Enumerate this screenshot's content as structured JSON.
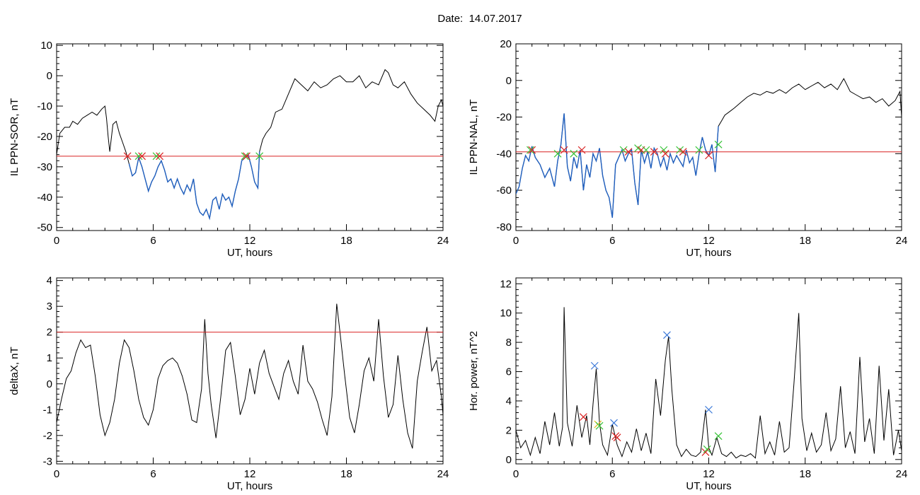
{
  "header": {
    "date_label": "Date:",
    "date_value": "14.07.2017"
  },
  "colors": {
    "trace": "#000000",
    "segment": "#1f5fbf",
    "threshold": "#d92020",
    "marker_red": "#d92020",
    "marker_green": "#35c335",
    "marker_blue": "#3b78d8",
    "marker_yellow": "#e0c020"
  },
  "chart_data": [
    {
      "id": "sor",
      "type": "line",
      "xlabel": "UT, hours",
      "ylabel": "IL PPN-SOR, nT",
      "xlim": [
        0,
        24
      ],
      "ylim": [
        -51,
        10.5
      ],
      "xticks": [
        0,
        6,
        12,
        18,
        24
      ],
      "yticks": [
        10,
        0,
        -10,
        -20,
        -30,
        -40,
        -50
      ],
      "threshold": -26.5,
      "x": [
        0,
        0.2,
        0.5,
        0.8,
        1.0,
        1.3,
        1.6,
        1.9,
        2.2,
        2.5,
        2.8,
        3.0,
        3.1,
        3.2,
        3.3,
        3.5,
        3.7,
        3.9,
        4.1,
        4.3,
        4.5,
        4.7,
        4.9,
        5.1,
        5.3,
        5.5,
        5.7,
        5.9,
        6.1,
        6.3,
        6.5,
        6.7,
        6.9,
        7.1,
        7.3,
        7.5,
        7.7,
        7.9,
        8.1,
        8.3,
        8.5,
        8.7,
        8.9,
        9.1,
        9.3,
        9.5,
        9.7,
        9.9,
        10.1,
        10.3,
        10.5,
        10.7,
        10.9,
        11.1,
        11.3,
        11.5,
        11.7,
        11.9,
        12.1,
        12.3,
        12.5,
        12.6,
        12.8,
        13.0,
        13.3,
        13.6,
        14.0,
        14.4,
        14.8,
        15.2,
        15.6,
        16.0,
        16.4,
        16.8,
        17.2,
        17.6,
        18.0,
        18.4,
        18.8,
        19.2,
        19.6,
        20.0,
        20.4,
        20.6,
        20.9,
        21.2,
        21.6,
        22.0,
        22.4,
        22.8,
        23.2,
        23.5,
        23.7,
        23.9,
        24.0
      ],
      "y": [
        -26,
        -19,
        -17,
        -17,
        -15,
        -16,
        -14,
        -13,
        -12,
        -13,
        -11,
        -10,
        -14,
        -20,
        -25,
        -16,
        -15,
        -19,
        -22,
        -25,
        -29,
        -33,
        -32,
        -27,
        -30,
        -34,
        -38,
        -35,
        -33,
        -30,
        -28,
        -31,
        -35,
        -34,
        -37,
        -34,
        -37,
        -39,
        -36,
        -38,
        -34,
        -42,
        -45,
        -46,
        -44,
        -47,
        -41,
        -40,
        -44,
        -39,
        -41,
        -40,
        -43,
        -38,
        -34,
        -28,
        -27,
        -26,
        -30,
        -35,
        -37,
        -25,
        -21,
        -19,
        -17,
        -12,
        -11,
        -6,
        -1,
        -3,
        -5,
        -2,
        -4,
        -3,
        -1,
        0,
        -2,
        -2,
        0,
        -4,
        -2,
        -3,
        2,
        1,
        -3,
        -4,
        -2,
        -6,
        -9,
        -11,
        -13,
        -15,
        -10,
        -8,
        -10
      ],
      "segments": [
        [
          4.4,
          12.6
        ]
      ],
      "markers": [
        {
          "x": 4.4,
          "y": -26.5,
          "color": "red"
        },
        {
          "x": 5.1,
          "y": -26.5,
          "color": "green"
        },
        {
          "x": 5.3,
          "y": -26.5,
          "color": "red"
        },
        {
          "x": 6.2,
          "y": -26.5,
          "color": "green"
        },
        {
          "x": 6.4,
          "y": -26.5,
          "color": "red"
        },
        {
          "x": 11.7,
          "y": -26.5,
          "color": "green"
        },
        {
          "x": 11.8,
          "y": -26.5,
          "color": "red"
        },
        {
          "x": 12.6,
          "y": -26.5,
          "color": "green"
        }
      ]
    },
    {
      "id": "nal",
      "type": "line",
      "xlabel": "UT, hours",
      "ylabel": "IL PPN-NAL, nT",
      "xlim": [
        0,
        24
      ],
      "ylim": [
        -82,
        20
      ],
      "xticks": [
        0,
        6,
        12,
        18,
        24
      ],
      "yticks": [
        20,
        0,
        -20,
        -40,
        -60,
        -80
      ],
      "threshold": -39,
      "x": [
        0,
        0.2,
        0.4,
        0.6,
        0.8,
        1.0,
        1.2,
        1.5,
        1.8,
        2.1,
        2.4,
        2.6,
        2.8,
        3.0,
        3.2,
        3.4,
        3.6,
        3.8,
        4.0,
        4.2,
        4.4,
        4.6,
        4.8,
        5.0,
        5.2,
        5.4,
        5.6,
        5.8,
        6.0,
        6.2,
        6.4,
        6.6,
        6.8,
        7.0,
        7.2,
        7.4,
        7.6,
        7.8,
        8.0,
        8.2,
        8.4,
        8.6,
        8.8,
        9.0,
        9.2,
        9.4,
        9.6,
        9.8,
        10.0,
        10.2,
        10.4,
        10.6,
        10.8,
        11.0,
        11.2,
        11.4,
        11.6,
        11.8,
        12.0,
        12.2,
        12.4,
        12.6,
        12.8,
        13.0,
        13.3,
        13.6,
        14.0,
        14.4,
        14.8,
        15.2,
        15.6,
        16.0,
        16.4,
        16.8,
        17.2,
        17.6,
        18.0,
        18.4,
        18.8,
        19.2,
        19.6,
        20.0,
        20.4,
        20.8,
        21.2,
        21.6,
        22.0,
        22.4,
        22.8,
        23.2,
        23.6,
        23.9,
        24.0
      ],
      "y": [
        -62,
        -58,
        -48,
        -41,
        -44,
        -36,
        -42,
        -46,
        -53,
        -48,
        -58,
        -44,
        -35,
        -18,
        -47,
        -55,
        -42,
        -48,
        -38,
        -60,
        -46,
        -53,
        -40,
        -44,
        -37,
        -52,
        -60,
        -64,
        -75,
        -46,
        -42,
        -38,
        -44,
        -40,
        -38,
        -56,
        -68,
        -38,
        -45,
        -39,
        -48,
        -37,
        -40,
        -47,
        -42,
        -49,
        -40,
        -45,
        -41,
        -44,
        -47,
        -38,
        -45,
        -42,
        -52,
        -40,
        -31,
        -38,
        -41,
        -35,
        -50,
        -25,
        -22,
        -19,
        -17,
        -15,
        -12,
        -9,
        -7,
        -8,
        -6,
        -7,
        -5,
        -7,
        -4,
        -2,
        -5,
        -3,
        -1,
        -4,
        -2,
        -5,
        1,
        -6,
        -8,
        -10,
        -9,
        -12,
        -10,
        -14,
        -11,
        -6,
        -20
      ],
      "segments": [
        [
          0,
          12.6
        ]
      ],
      "markers": [
        {
          "x": 0.9,
          "y": -38,
          "color": "green"
        },
        {
          "x": 1.0,
          "y": -38,
          "color": "red"
        },
        {
          "x": 2.6,
          "y": -40,
          "color": "green"
        },
        {
          "x": 3.0,
          "y": -38,
          "color": "red"
        },
        {
          "x": 3.6,
          "y": -40,
          "color": "green"
        },
        {
          "x": 4.1,
          "y": -38,
          "color": "red"
        },
        {
          "x": 6.7,
          "y": -38,
          "color": "green"
        },
        {
          "x": 7.0,
          "y": -39,
          "color": "red"
        },
        {
          "x": 7.6,
          "y": -37,
          "color": "green"
        },
        {
          "x": 7.8,
          "y": -38,
          "color": "red"
        },
        {
          "x": 8.1,
          "y": -38,
          "color": "green"
        },
        {
          "x": 8.6,
          "y": -39,
          "color": "red"
        },
        {
          "x": 9.2,
          "y": -38,
          "color": "green"
        },
        {
          "x": 9.3,
          "y": -40,
          "color": "red"
        },
        {
          "x": 10.2,
          "y": -38,
          "color": "green"
        },
        {
          "x": 10.4,
          "y": -39,
          "color": "red"
        },
        {
          "x": 11.4,
          "y": -38,
          "color": "green"
        },
        {
          "x": 12.0,
          "y": -41,
          "color": "red"
        },
        {
          "x": 12.6,
          "y": -35,
          "color": "green"
        }
      ]
    },
    {
      "id": "deltax",
      "type": "line",
      "xlabel": "UT, hours",
      "ylabel": "deltaX, nT",
      "xlim": [
        0,
        24
      ],
      "ylim": [
        -3.1,
        4.1
      ],
      "xticks": [
        0,
        6,
        12,
        18,
        24
      ],
      "yticks": [
        4,
        3,
        2,
        1,
        0,
        -1,
        -2,
        -3
      ],
      "threshold": 2,
      "x": [
        0,
        0.3,
        0.6,
        0.9,
        1.2,
        1.5,
        1.8,
        2.1,
        2.4,
        2.7,
        3.0,
        3.3,
        3.6,
        3.9,
        4.2,
        4.5,
        4.8,
        5.1,
        5.4,
        5.7,
        6.0,
        6.3,
        6.6,
        6.9,
        7.2,
        7.5,
        7.8,
        8.1,
        8.4,
        8.7,
        9.0,
        9.2,
        9.4,
        9.6,
        9.9,
        10.2,
        10.5,
        10.8,
        11.1,
        11.4,
        11.7,
        12.0,
        12.3,
        12.6,
        12.9,
        13.2,
        13.5,
        13.8,
        14.1,
        14.4,
        14.7,
        15.0,
        15.3,
        15.6,
        15.9,
        16.2,
        16.5,
        16.8,
        17.1,
        17.4,
        17.6,
        17.9,
        18.2,
        18.5,
        18.8,
        19.1,
        19.4,
        19.7,
        20.0,
        20.3,
        20.6,
        20.9,
        21.2,
        21.5,
        21.8,
        22.1,
        22.4,
        22.7,
        23.0,
        23.3,
        23.6,
        23.9,
        24.0
      ],
      "y": [
        -1.5,
        -0.6,
        0.2,
        0.5,
        1.2,
        1.7,
        1.4,
        1.5,
        0.3,
        -1.2,
        -2.0,
        -1.5,
        -0.6,
        0.8,
        1.7,
        1.4,
        0.5,
        -0.6,
        -1.3,
        -1.6,
        -1.0,
        0.2,
        0.7,
        0.9,
        1.0,
        0.8,
        0.3,
        -0.4,
        -1.4,
        -1.5,
        -0.2,
        2.5,
        0.4,
        -0.8,
        -2.1,
        -0.5,
        1.3,
        1.6,
        0.3,
        -1.2,
        -0.6,
        0.6,
        -0.4,
        0.8,
        1.3,
        0.4,
        -0.1,
        -0.6,
        0.4,
        0.9,
        0.1,
        -0.4,
        1.5,
        0.1,
        -0.2,
        -0.7,
        -1.4,
        -2.0,
        -0.5,
        3.1,
        2.0,
        0.3,
        -1.3,
        -1.9,
        -0.8,
        0.5,
        1.0,
        0.1,
        2.5,
        0.3,
        -1.3,
        -0.8,
        1.1,
        -0.6,
        -1.9,
        -2.5,
        0.1,
        1.2,
        2.2,
        0.5,
        0.9,
        -0.5,
        -1.2
      ]
    },
    {
      "id": "power",
      "type": "line",
      "xlabel": "UT, hours",
      "ylabel": "Hor. power, nT^2",
      "xlim": [
        0,
        24
      ],
      "ylim": [
        -0.3,
        12.4
      ],
      "xticks": [
        0,
        6,
        12,
        18,
        24
      ],
      "yticks": [
        0,
        2,
        4,
        6,
        8,
        10,
        12
      ],
      "x": [
        0,
        0.3,
        0.6,
        0.9,
        1.2,
        1.5,
        1.8,
        2.1,
        2.4,
        2.7,
        2.9,
        3.0,
        3.2,
        3.5,
        3.8,
        4.1,
        4.4,
        4.6,
        4.8,
        5.0,
        5.2,
        5.4,
        5.7,
        6.0,
        6.3,
        6.6,
        6.9,
        7.2,
        7.5,
        7.8,
        8.1,
        8.4,
        8.7,
        9.0,
        9.3,
        9.5,
        9.7,
        10.0,
        10.3,
        10.6,
        10.9,
        11.2,
        11.5,
        11.8,
        12.0,
        12.2,
        12.5,
        12.8,
        13.1,
        13.4,
        13.7,
        14.0,
        14.3,
        14.6,
        14.9,
        15.2,
        15.5,
        15.8,
        16.1,
        16.4,
        16.7,
        17.0,
        17.3,
        17.6,
        17.8,
        18.1,
        18.4,
        18.7,
        19.0,
        19.3,
        19.6,
        19.9,
        20.2,
        20.5,
        20.8,
        21.1,
        21.4,
        21.7,
        22.0,
        22.3,
        22.6,
        22.9,
        23.2,
        23.5,
        23.8,
        24.0
      ],
      "y": [
        2.0,
        0.8,
        1.3,
        0.3,
        1.5,
        0.4,
        2.6,
        1.0,
        3.2,
        0.9,
        2.2,
        10.4,
        2.5,
        0.9,
        3.7,
        1.5,
        3.0,
        1.0,
        3.8,
        6.2,
        2.5,
        1.0,
        0.3,
        2.4,
        1.0,
        0.2,
        1.2,
        0.5,
        2.1,
        0.6,
        1.8,
        0.4,
        5.5,
        3.0,
        6.8,
        8.4,
        4.8,
        1.0,
        0.2,
        0.7,
        0.3,
        0.2,
        0.5,
        3.4,
        0.8,
        0.3,
        1.5,
        0.4,
        0.2,
        0.5,
        0.1,
        0.3,
        0.2,
        0.4,
        0.1,
        3.0,
        0.4,
        1.2,
        0.3,
        2.6,
        0.5,
        0.8,
        5.2,
        10.0,
        2.8,
        0.6,
        1.8,
        0.5,
        1.0,
        3.2,
        0.6,
        1.4,
        5.0,
        0.8,
        1.9,
        0.4,
        7.0,
        1.2,
        2.8,
        0.4,
        6.4,
        1.3,
        4.8,
        0.3,
        2.0,
        0.6
      ],
      "markers": [
        {
          "x": 4.2,
          "y": 2.9,
          "color": "red"
        },
        {
          "x": 4.9,
          "y": 6.4,
          "color": "blue"
        },
        {
          "x": 5.1,
          "y": 2.4,
          "color": "yellow"
        },
        {
          "x": 5.2,
          "y": 2.3,
          "color": "green"
        },
        {
          "x": 6.1,
          "y": 2.5,
          "color": "blue"
        },
        {
          "x": 6.2,
          "y": 1.6,
          "color": "red"
        },
        {
          "x": 6.3,
          "y": 1.5,
          "color": "red"
        },
        {
          "x": 9.4,
          "y": 8.5,
          "color": "blue"
        },
        {
          "x": 11.8,
          "y": 0.5,
          "color": "red"
        },
        {
          "x": 11.9,
          "y": 0.7,
          "color": "green"
        },
        {
          "x": 12.0,
          "y": 3.4,
          "color": "blue"
        },
        {
          "x": 12.6,
          "y": 1.6,
          "color": "green"
        }
      ]
    }
  ]
}
